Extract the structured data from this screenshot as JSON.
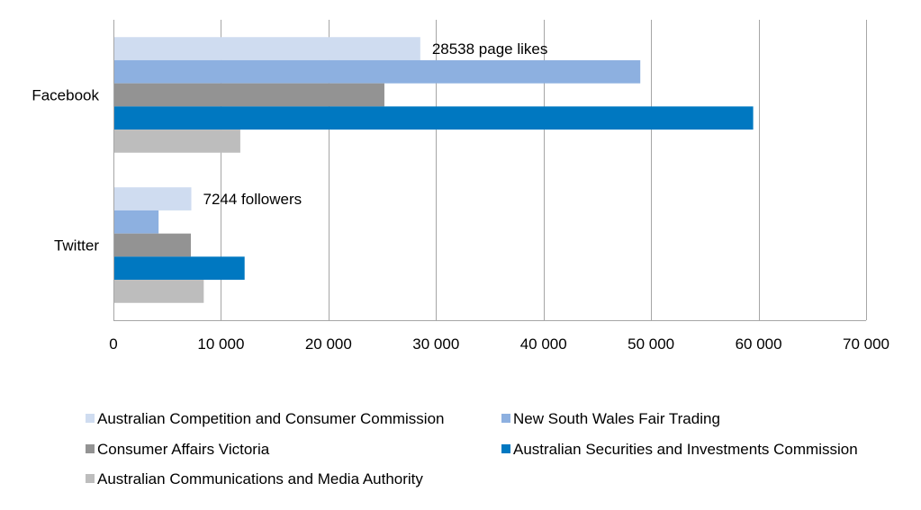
{
  "chart_data": {
    "type": "bar",
    "orientation": "horizontal",
    "categories": [
      "Facebook",
      "Twitter"
    ],
    "series": [
      {
        "name": "Australian Competition and Consumer Commission",
        "values": [
          28538,
          7244
        ],
        "color": "#cfdcf0"
      },
      {
        "name": "New South Wales Fair Trading",
        "values": [
          49000,
          4200
        ],
        "color": "#8db0e0"
      },
      {
        "name": "Consumer Affairs Victoria",
        "values": [
          25200,
          7200
        ],
        "color": "#939393"
      },
      {
        "name": "Australian Securities and Investments Commission",
        "values": [
          59500,
          12200
        ],
        "color": "#0078c1"
      },
      {
        "name": "Australian Communications and Media Authority",
        "values": [
          11800,
          8400
        ],
        "color": "#bdbdbd"
      }
    ],
    "xlim": [
      0,
      70000
    ],
    "xticks": [
      0,
      10000,
      20000,
      30000,
      40000,
      50000,
      60000,
      70000
    ],
    "xtick_labels": [
      "0",
      "10 000",
      "20 000",
      "30 000",
      "40 000",
      "50 000",
      "60 000",
      "70 000"
    ],
    "annotations": [
      {
        "category": "Facebook",
        "series": "Australian Competition and Consumer Commission",
        "text": "28538 page likes"
      },
      {
        "category": "Twitter",
        "series": "Australian Competition and Consumer Commission",
        "text": "7244 followers"
      }
    ],
    "grid": true,
    "legend_position": "bottom",
    "title": "",
    "xlabel": "",
    "ylabel": ""
  }
}
